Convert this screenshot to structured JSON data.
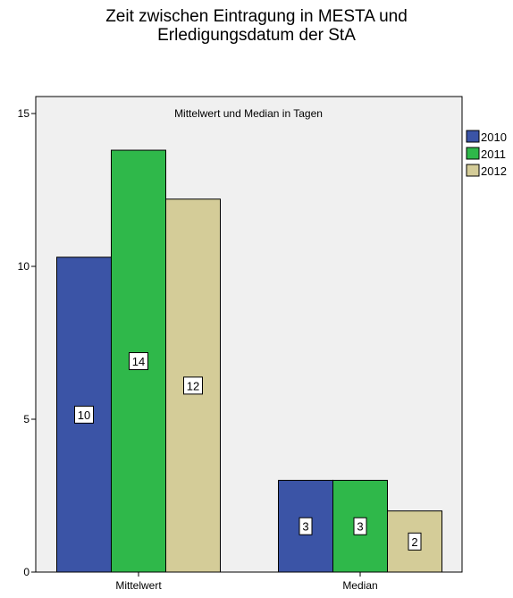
{
  "chart_data": {
    "type": "bar",
    "title_lines": [
      "Zeit zwischen Eintragung in MESTA und",
      "Erledigungsdatum der StA"
    ],
    "inner_title": "Mittelwert und Median in Tagen",
    "categories": [
      "Mittelwert",
      "Median"
    ],
    "series": [
      {
        "name": "2010",
        "color": "#3b54a6",
        "values": [
          10.3,
          3.0
        ],
        "labels": [
          "10",
          "3"
        ]
      },
      {
        "name": "2011",
        "color": "#2fb84a",
        "values": [
          13.8,
          3.0
        ],
        "labels": [
          "14",
          "3"
        ]
      },
      {
        "name": "2012",
        "color": "#d4cc98",
        "values": [
          12.2,
          2.0
        ],
        "labels": [
          "12",
          "2"
        ]
      }
    ],
    "ylim": [
      0,
      15
    ],
    "yticks": [
      0,
      5,
      10,
      15
    ],
    "xlabel": "",
    "ylabel": "",
    "grid": false,
    "legend_position": "right",
    "plot_background": "#f0f0f0"
  }
}
